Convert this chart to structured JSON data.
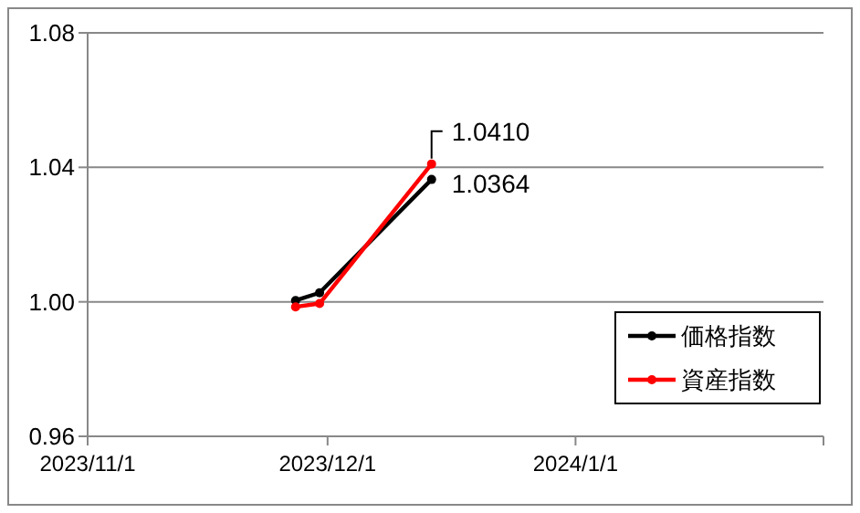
{
  "chart_data": {
    "type": "line",
    "xlim": [
      "2023-11-01",
      "2024-02-01"
    ],
    "xticks": [
      {
        "value": "2023-11-01",
        "label": "2023/11/1"
      },
      {
        "value": "2023-12-01",
        "label": "2023/12/1"
      },
      {
        "value": "2024-01-01",
        "label": "2024/1/1"
      },
      {
        "value": "2024-02-01",
        "label": null
      }
    ],
    "ylim": [
      0.96,
      1.08
    ],
    "yticks": [
      {
        "value": 0.96,
        "label": "0.96"
      },
      {
        "value": 1.0,
        "label": "1.00"
      },
      {
        "value": 1.04,
        "label": "1.04"
      },
      {
        "value": 1.08,
        "label": "1.08"
      }
    ],
    "x": [
      "2023-11-27",
      "2023-11-30",
      "2023-12-14"
    ],
    "series": [
      {
        "name": "価格指数",
        "color": "#000000",
        "values": [
          1.0004,
          1.0027,
          1.0364
        ],
        "value_labels": [
          null,
          null,
          "1.0364"
        ]
      },
      {
        "name": "資産指数",
        "color": "#ff0000",
        "values": [
          0.9985,
          0.9995,
          1.041
        ],
        "value_labels": [
          null,
          null,
          "1.0410"
        ]
      }
    ],
    "grid": "y",
    "legend": "bottom right",
    "marker": "circle",
    "line_style": "solid"
  }
}
